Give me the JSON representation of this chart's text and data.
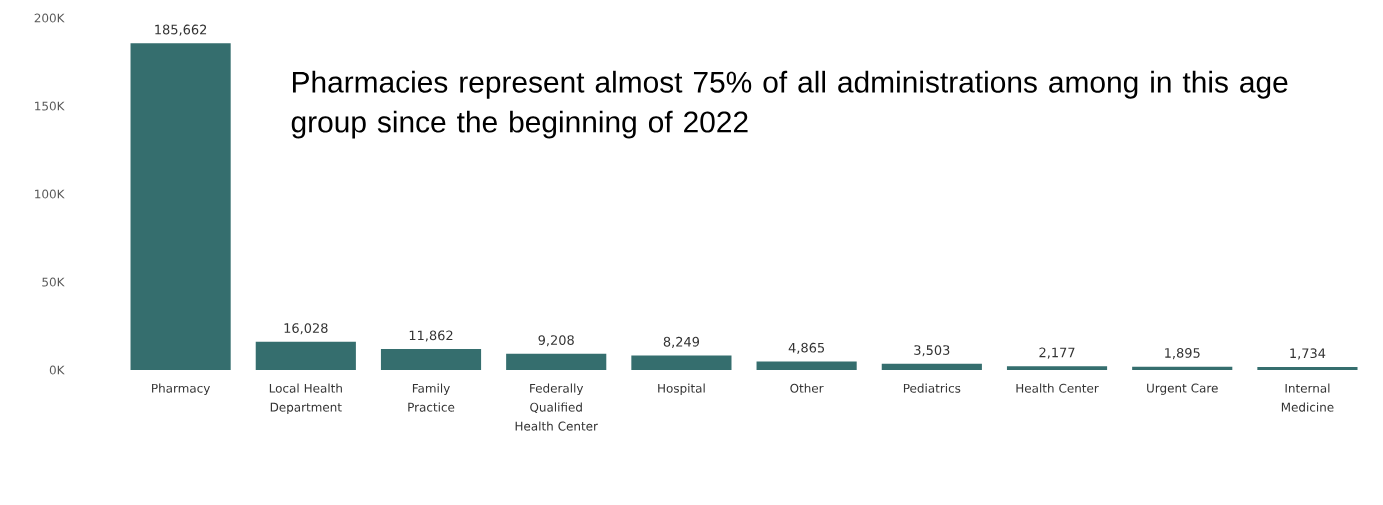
{
  "chart_data": {
    "type": "bar",
    "categories": [
      "Pharmacy",
      "Local Health Department",
      "Family Practice",
      "Federally Qualified Health Center",
      "Hospital",
      "Other",
      "Pediatrics",
      "Health Center",
      "Urgent Care",
      "Internal Medicine"
    ],
    "values": [
      185662,
      16028,
      11862,
      9208,
      8249,
      4865,
      3503,
      2177,
      1895,
      1734
    ],
    "value_labels": [
      "185,662",
      "16,028",
      "11,862",
      "9,208",
      "8,249",
      "4,865",
      "3,503",
      "2,177",
      "1,895",
      "1,734"
    ],
    "color": "#356e6e",
    "ylim": [
      0,
      200000
    ],
    "yticks": [
      {
        "value": 0,
        "label": "0K"
      },
      {
        "value": 50000,
        "label": "50K"
      },
      {
        "value": 100000,
        "label": "100K"
      },
      {
        "value": 150000,
        "label": "150K"
      },
      {
        "value": 200000,
        "label": "200K"
      }
    ],
    "annotations": [
      "Pharmacies represent almost 75% of all administrations among in this age group since the beginning of 2022"
    ]
  }
}
